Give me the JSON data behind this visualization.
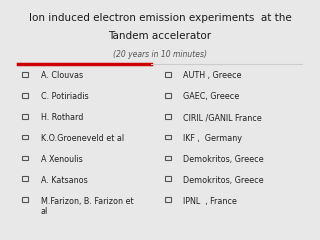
{
  "title_line1": "Ion induced electron emission experiments  at the",
  "title_line2": "Tandem accelerator",
  "subtitle": "(20 years in 10 minutes)",
  "left_items": [
    "A. Clouvas",
    "C. Potiriadis",
    "H. Rothard",
    "K.O.Groeneveld et al",
    "A Xenoulis",
    "A. Katsanos",
    "M.Farizon, B. Farizon et\nal"
  ],
  "right_items": [
    "AUTH , Greece",
    "GAEC, Greece",
    "CIRIL /GANIL France",
    "IKF ,  Germany",
    "Demokritos, Greece",
    "Demokritos, Greece",
    "IPNL  , France"
  ],
  "bg_color": "#e8e8e8",
  "title_color": "#1a1a1a",
  "subtitle_color": "#555555",
  "text_color": "#222222",
  "line_color_left": "#cc0000",
  "line_color_right": "#cccccc",
  "checkbox_color": "#555555"
}
